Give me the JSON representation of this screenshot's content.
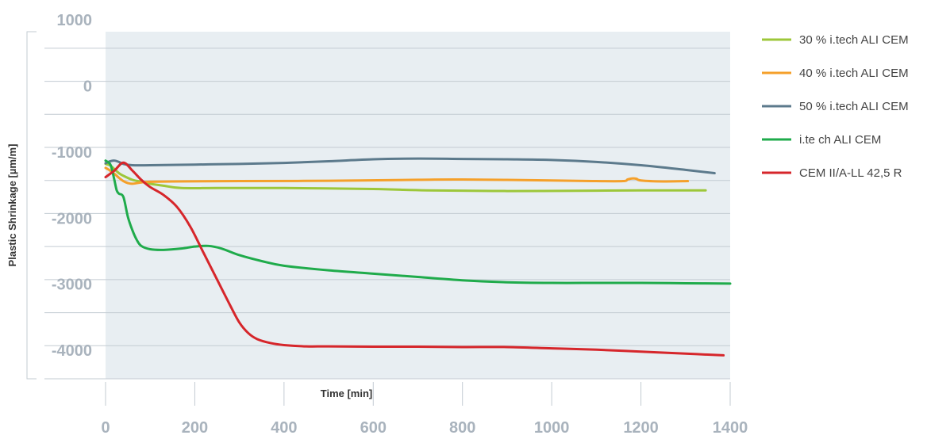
{
  "chart_data": {
    "type": "line",
    "title": "",
    "xlabel": "Time [min]",
    "ylabel": "Plastic Shrinkage [µm/m]",
    "xlim": [
      0,
      1400
    ],
    "ylim": [
      -4250,
      1000
    ],
    "x_ticks": [
      0,
      200,
      400,
      600,
      800,
      1000,
      1200,
      1400
    ],
    "y_ticks": [
      1000,
      0,
      -1000,
      -2000,
      -3000,
      -4000
    ],
    "grid": true,
    "legend_position": "right",
    "background_color": "#e8eef2",
    "series": [
      {
        "name": "30 % i.tech ALI CEM",
        "color": "#9dc73a",
        "x": [
          0,
          10,
          20,
          30,
          40,
          60,
          80,
          100,
          130,
          170,
          250,
          400,
          600,
          720,
          900,
          1100,
          1200,
          1345
        ],
        "y": [
          -1000,
          -1020,
          -1080,
          -1140,
          -1180,
          -1240,
          -1270,
          -1300,
          -1330,
          -1365,
          -1365,
          -1365,
          -1380,
          -1400,
          -1410,
          -1405,
          -1400,
          -1400
        ]
      },
      {
        "name": "40 % i.tech ALI CEM",
        "color": "#f5a02a",
        "x": [
          0,
          10,
          20,
          30,
          40,
          50,
          60,
          80,
          100,
          150,
          300,
          500,
          700,
          800,
          1000,
          1100,
          1160,
          1170,
          1180,
          1190,
          1200,
          1250,
          1305
        ],
        "y": [
          -1060,
          -1100,
          -1150,
          -1210,
          -1260,
          -1290,
          -1300,
          -1280,
          -1270,
          -1265,
          -1260,
          -1255,
          -1240,
          -1235,
          -1250,
          -1260,
          -1260,
          -1235,
          -1220,
          -1225,
          -1250,
          -1265,
          -1260
        ]
      },
      {
        "name": "50 % i.tech ALI CEM",
        "color": "#5c7a8c",
        "x": [
          0,
          10,
          20,
          30,
          40,
          60,
          100,
          200,
          300,
          400,
          500,
          600,
          700,
          800,
          900,
          1000,
          1100,
          1200,
          1300,
          1365
        ],
        "y": [
          -990,
          -960,
          -950,
          -970,
          -1000,
          -1020,
          -1020,
          -1010,
          -1000,
          -985,
          -960,
          -930,
          -920,
          -925,
          -930,
          -940,
          -970,
          -1020,
          -1090,
          -1140
        ]
      },
      {
        "name": "i.te ch ALI CEM",
        "color": "#1fab4b",
        "x": [
          0,
          10,
          15,
          20,
          25,
          30,
          40,
          50,
          60,
          70,
          80,
          100,
          130,
          170,
          200,
          230,
          260,
          300,
          350,
          400,
          500,
          600,
          700,
          800,
          900,
          1000,
          1100,
          1200,
          1300,
          1400
        ],
        "y": [
          -950,
          -1000,
          -1100,
          -1250,
          -1400,
          -1450,
          -1500,
          -1800,
          -2000,
          -2150,
          -2240,
          -2290,
          -2300,
          -2280,
          -2250,
          -2240,
          -2280,
          -2380,
          -2470,
          -2540,
          -2610,
          -2660,
          -2710,
          -2760,
          -2790,
          -2800,
          -2800,
          -2800,
          -2805,
          -2810
        ]
      },
      {
        "name": "CEM II/A-LL 42,5 R",
        "color": "#d6262b",
        "x": [
          0,
          20,
          40,
          60,
          80,
          100,
          130,
          160,
          190,
          220,
          250,
          280,
          300,
          320,
          340,
          370,
          400,
          450,
          500,
          600,
          700,
          800,
          900,
          1000,
          1100,
          1200,
          1300,
          1385
        ],
        "y": [
          -1200,
          -1100,
          -980,
          -1100,
          -1240,
          -1350,
          -1470,
          -1650,
          -1950,
          -2350,
          -2750,
          -3150,
          -3400,
          -3560,
          -3650,
          -3710,
          -3740,
          -3760,
          -3760,
          -3765,
          -3765,
          -3770,
          -3770,
          -3790,
          -3810,
          -3840,
          -3870,
          -3895
        ]
      }
    ]
  }
}
